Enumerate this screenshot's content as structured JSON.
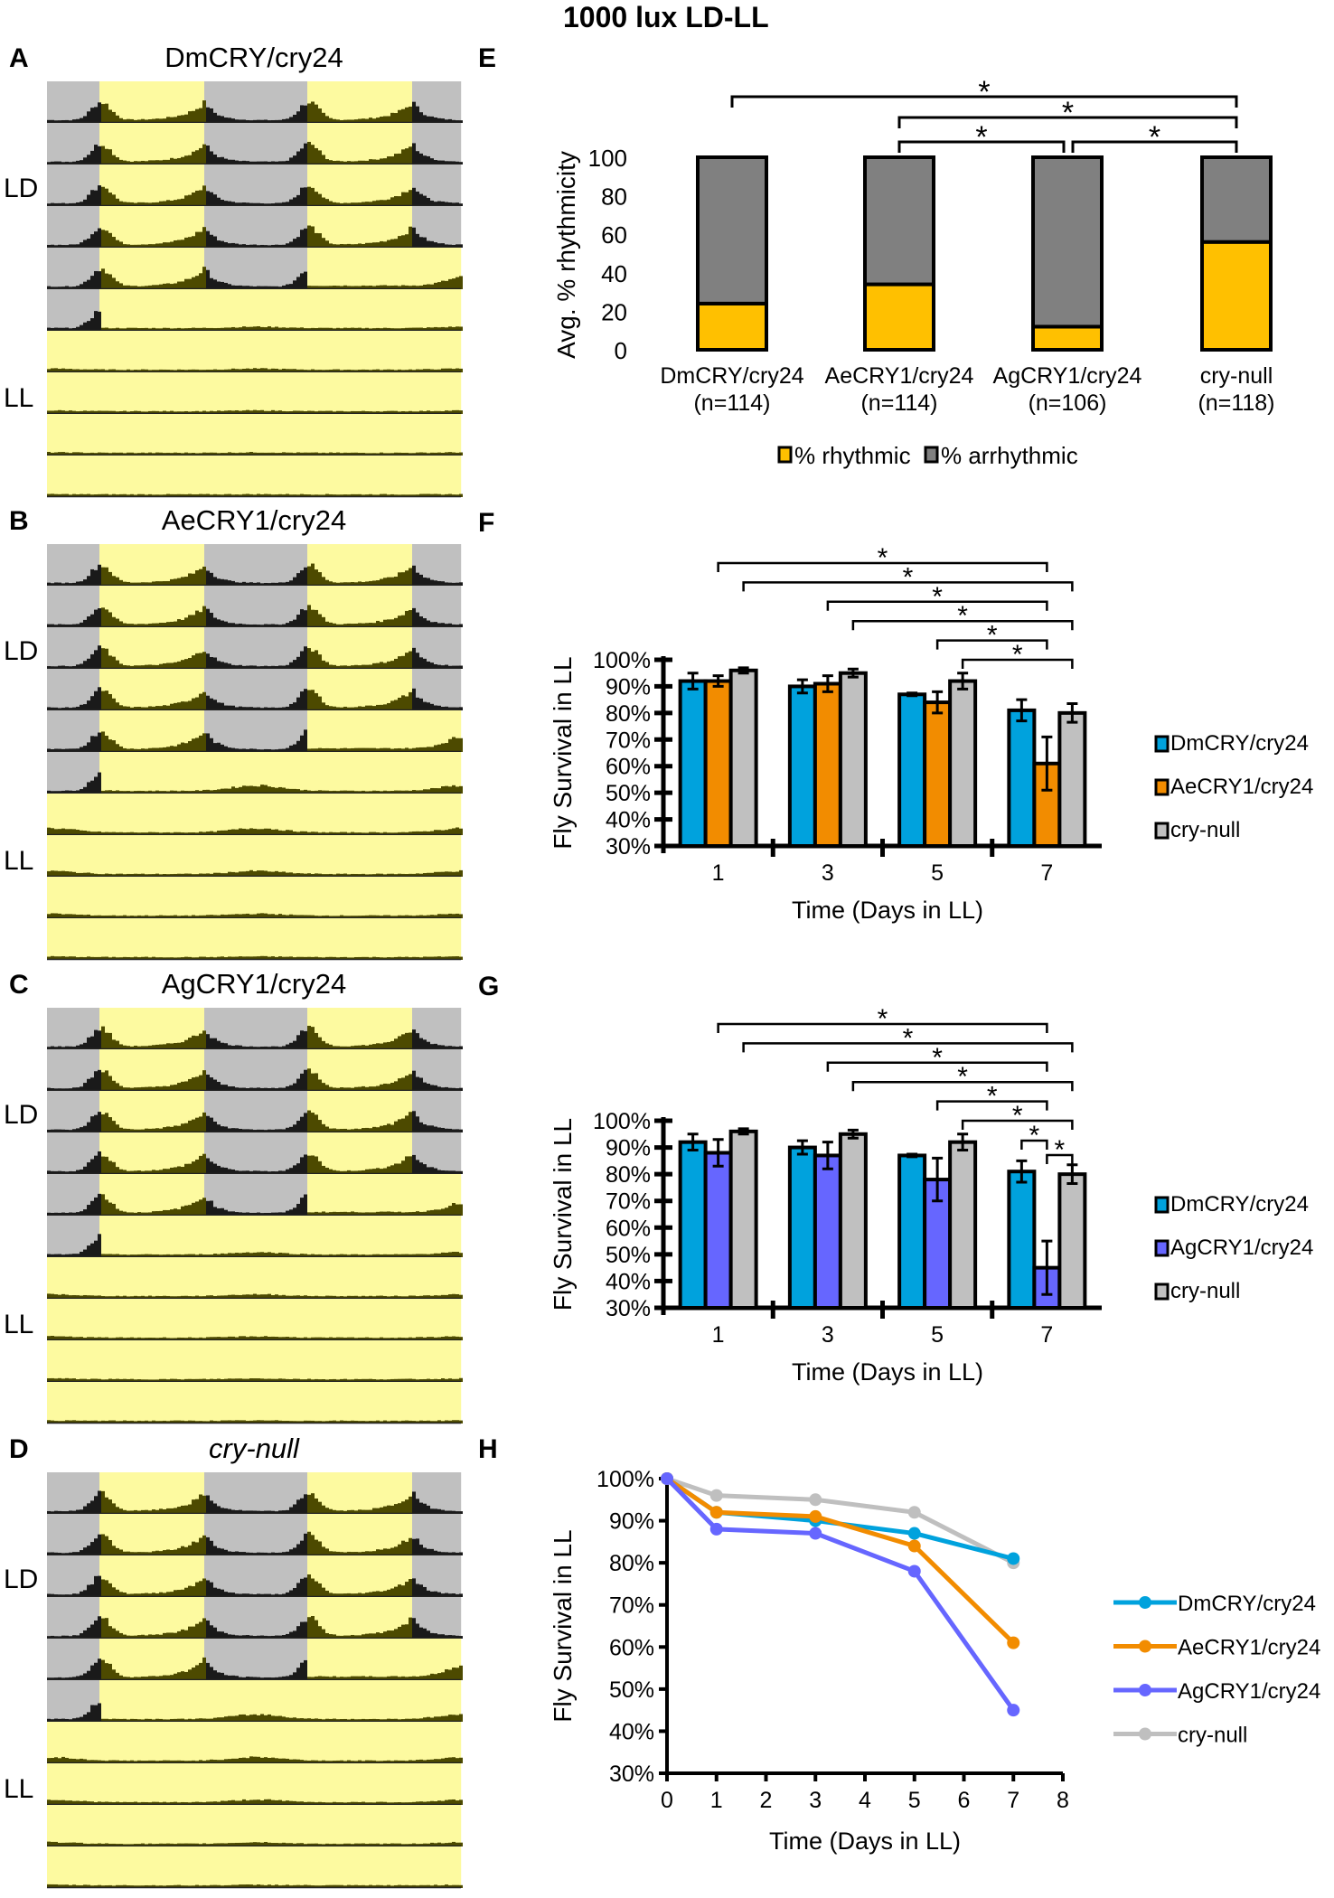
{
  "title": "1000 lux LD-LL",
  "actogram_labels": {
    "ld": "LD",
    "ll": "LL"
  },
  "actograms": [
    {
      "letter": "A",
      "genotype": "DmCRY/cry24",
      "italic": false,
      "ll_rhythm": 0.15
    },
    {
      "letter": "B",
      "genotype": "AeCRY1/cry24",
      "italic": false,
      "ll_rhythm": 0.6
    },
    {
      "letter": "C",
      "genotype": "AgCRY1/cry24",
      "italic": false,
      "ll_rhythm": 0.25
    },
    {
      "letter": "D",
      "genotype": "cry-null",
      "italic": true,
      "ll_rhythm": 0.5
    }
  ],
  "colors": {
    "light": "#fdfaa0",
    "dark": "#c0c0c0",
    "activity_light": "#4d4a00",
    "activity_dark": "#1a1a1a"
  },
  "chart_data": [
    {
      "letter": "E",
      "type": "bar",
      "stacked": true,
      "categories": [
        "DmCRY/cry24",
        "AeCRY1/cry24",
        "AgCRY1/cry24",
        "cry-null"
      ],
      "n_labels": [
        "(n=114)",
        "(n=114)",
        "(n=106)",
        "(n=118)"
      ],
      "series": [
        {
          "name": "% rhythmic",
          "values": [
            24,
            34,
            12,
            56
          ],
          "color": "#ffc000"
        },
        {
          "name": "% arrhythmic",
          "values": [
            76,
            66,
            88,
            44
          ],
          "color": "#808080"
        }
      ],
      "ylabel": "Avg. % rhythmicity",
      "ylim": [
        0,
        100
      ],
      "yticks": [
        "0",
        "20",
        "40",
        "60",
        "80",
        "100"
      ],
      "legend": "bottom",
      "significance": [
        {
          "from": 0,
          "to": 3,
          "label": "*"
        },
        {
          "from": 1,
          "to": 3,
          "label": "*"
        },
        {
          "from": 1,
          "to": 2,
          "label": "*"
        },
        {
          "from": 2,
          "to": 3,
          "label": "*"
        }
      ]
    },
    {
      "letter": "F",
      "type": "bar",
      "categories": [
        "1",
        "3",
        "5",
        "7"
      ],
      "series": [
        {
          "name": "DmCRY/cry24",
          "values": [
            92,
            90,
            87,
            81
          ],
          "errors": [
            3,
            2.5,
            0.5,
            4
          ],
          "color": "#00a2dd"
        },
        {
          "name": "AeCRY1/cry24",
          "values": [
            92,
            91,
            84,
            61
          ],
          "errors": [
            2,
            3,
            4,
            10
          ],
          "color": "#f28c00"
        },
        {
          "name": "cry-null",
          "values": [
            96,
            95,
            92,
            80
          ],
          "errors": [
            1,
            1.5,
            3,
            3.5
          ],
          "color": "#c0c0c0"
        }
      ],
      "xlabel": "Time (Days in LL)",
      "ylabel": "Fly Survival in LL",
      "ylim": [
        30,
        100
      ],
      "yticks": [
        "30%",
        "40%",
        "50%",
        "60%",
        "70%",
        "80%",
        "90%",
        "100%"
      ],
      "legend": "right",
      "significance": [
        {
          "from": [
            0,
            1
          ],
          "to": [
            3,
            1
          ],
          "label": "*"
        },
        {
          "from": [
            0,
            2
          ],
          "to": [
            3,
            2
          ],
          "label": "*"
        },
        {
          "from": [
            1,
            1
          ],
          "to": [
            3,
            1
          ],
          "label": "*"
        },
        {
          "from": [
            1,
            2
          ],
          "to": [
            3,
            2
          ],
          "label": "*"
        },
        {
          "from": [
            2,
            1
          ],
          "to": [
            3,
            1
          ],
          "label": "*"
        },
        {
          "from": [
            2,
            2
          ],
          "to": [
            3,
            2
          ],
          "label": "*"
        }
      ]
    },
    {
      "letter": "G",
      "type": "bar",
      "categories": [
        "1",
        "3",
        "5",
        "7"
      ],
      "series": [
        {
          "name": "DmCRY/cry24",
          "values": [
            92,
            90,
            87,
            81
          ],
          "errors": [
            3,
            2.5,
            0.5,
            4
          ],
          "color": "#00a2dd"
        },
        {
          "name": "AgCRY1/cry24",
          "values": [
            88,
            87,
            78,
            45
          ],
          "errors": [
            5,
            5,
            8,
            10
          ],
          "color": "#6666ff"
        },
        {
          "name": "cry-null",
          "values": [
            96,
            95,
            92,
            80
          ],
          "errors": [
            1,
            1.5,
            3,
            3.5
          ],
          "color": "#c0c0c0"
        }
      ],
      "xlabel": "Time (Days in LL)",
      "ylabel": "Fly Survival in LL",
      "ylim": [
        30,
        100
      ],
      "yticks": [
        "30%",
        "40%",
        "50%",
        "60%",
        "70%",
        "80%",
        "90%",
        "100%"
      ],
      "legend": "right",
      "significance": [
        {
          "from": [
            0,
            1
          ],
          "to": [
            3,
            1
          ],
          "label": "*"
        },
        {
          "from": [
            0,
            2
          ],
          "to": [
            3,
            2
          ],
          "label": "*"
        },
        {
          "from": [
            1,
            1
          ],
          "to": [
            3,
            1
          ],
          "label": "*"
        },
        {
          "from": [
            1,
            2
          ],
          "to": [
            3,
            2
          ],
          "label": "*"
        },
        {
          "from": [
            2,
            1
          ],
          "to": [
            3,
            1
          ],
          "label": "*"
        },
        {
          "from": [
            2,
            2
          ],
          "to": [
            3,
            2
          ],
          "label": "*"
        },
        {
          "from": [
            3,
            0
          ],
          "to": [
            3,
            1
          ],
          "label": "*"
        },
        {
          "from": [
            3,
            1
          ],
          "to": [
            3,
            2
          ],
          "label": "*"
        }
      ]
    },
    {
      "letter": "H",
      "type": "line",
      "x": [
        0,
        1,
        3,
        5,
        7
      ],
      "series": [
        {
          "name": "DmCRY/cry24",
          "values": [
            100,
            92,
            90,
            87,
            81
          ],
          "color": "#00a2dd"
        },
        {
          "name": "AeCRY1/cry24",
          "values": [
            100,
            92,
            91,
            84,
            61
          ],
          "color": "#f28c00"
        },
        {
          "name": "AgCRY1/cry24",
          "values": [
            100,
            88,
            87,
            78,
            45
          ],
          "color": "#6666ff"
        },
        {
          "name": "cry-null",
          "values": [
            100,
            96,
            95,
            92,
            80
          ],
          "color": "#bfbfbf"
        }
      ],
      "xlabel": "Time (Days in LL)",
      "ylabel": "Fly Survival in LL",
      "xlim": [
        0,
        8
      ],
      "ylim": [
        30,
        100
      ],
      "xticks": [
        "0",
        "1",
        "2",
        "3",
        "4",
        "5",
        "6",
        "7",
        "8"
      ],
      "yticks": [
        "30%",
        "40%",
        "50%",
        "60%",
        "70%",
        "80%",
        "90%",
        "100%"
      ],
      "legend": "right"
    }
  ]
}
